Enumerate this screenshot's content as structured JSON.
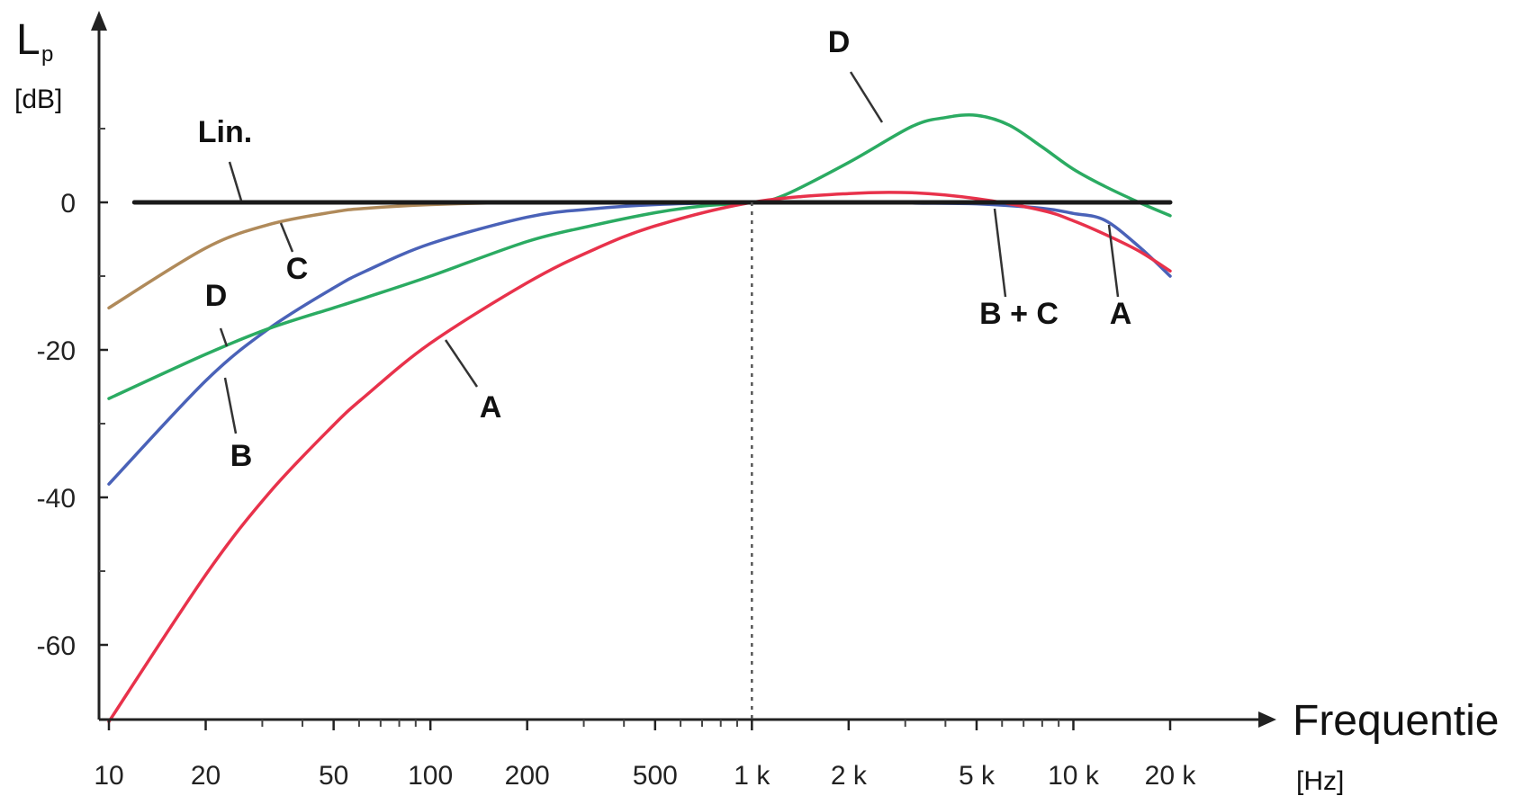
{
  "chart_data": {
    "type": "line",
    "title": "",
    "ylabel_main": "L",
    "ylabel_sub": "p",
    "ylabel_unit": "[dB]",
    "xlabel": "Frequentie",
    "xlabel_unit": "[Hz]",
    "x_scale": "log",
    "xlim": [
      10,
      20000
    ],
    "ylim": [
      -70,
      20
    ],
    "x_ticks": [
      10,
      20,
      50,
      100,
      200,
      500,
      1000,
      2000,
      5000,
      10000,
      20000
    ],
    "x_tick_labels": [
      "10",
      "20",
      "50",
      "100",
      "200",
      "500",
      "1 k",
      "2 k",
      "5 k",
      "10 k",
      "20 k"
    ],
    "y_ticks": [
      0,
      -20,
      -40,
      -60
    ],
    "y_tick_labels": [
      "0",
      "-20",
      "-40",
      "-60"
    ],
    "reference_line_x": 1000,
    "series": [
      {
        "name": "Lin.",
        "color": "#1a1a1a",
        "x": [
          12,
          20000
        ],
        "y": [
          0,
          0
        ]
      },
      {
        "name": "C",
        "color": "#b08a5a",
        "x": [
          10,
          20,
          31.5,
          50,
          63,
          100,
          200,
          500,
          1000
        ],
        "y": [
          -14.3,
          -6.2,
          -3.0,
          -1.3,
          -0.8,
          -0.3,
          0,
          0,
          0
        ]
      },
      {
        "name": "B",
        "color": "#4a62b8",
        "x": [
          10,
          20,
          31.5,
          50,
          63,
          100,
          200,
          315,
          500,
          1000,
          2000,
          3150,
          5000,
          8000,
          10000,
          12500,
          16000,
          20000
        ],
        "y": [
          -38.2,
          -24.2,
          -17.1,
          -11.6,
          -9.3,
          -5.6,
          -2.0,
          -0.9,
          -0.3,
          0,
          0,
          -0.1,
          -0.2,
          -0.8,
          -1.5,
          -2.4,
          -6.0,
          -10.0
        ]
      },
      {
        "name": "A",
        "color": "#e8324b",
        "x": [
          10,
          20,
          31.5,
          50,
          63,
          100,
          200,
          315,
          500,
          1000,
          2000,
          3150,
          5000,
          8000,
          10000,
          12500,
          16000,
          20000
        ],
        "y": [
          -70.4,
          -50.5,
          -39.4,
          -30.2,
          -26.2,
          -19.1,
          -10.9,
          -6.6,
          -3.2,
          0,
          1.2,
          1.3,
          0.5,
          -1.1,
          -2.5,
          -4.3,
          -6.6,
          -9.3
        ]
      },
      {
        "name": "D",
        "color": "#2bab62",
        "x": [
          10,
          20,
          31.5,
          50,
          63,
          100,
          200,
          315,
          500,
          700,
          1000,
          1250,
          2000,
          3150,
          4000,
          5000,
          6300,
          8000,
          10000,
          12500,
          16000,
          20000
        ],
        "y": [
          -26.6,
          -20.6,
          -17.1,
          -14.3,
          -12.9,
          -10.0,
          -5.3,
          -3.2,
          -1.4,
          -0.5,
          0,
          0.9,
          5.4,
          10.3,
          11.5,
          11.8,
          10.5,
          7.5,
          4.5,
          2.2,
          0,
          -1.8
        ]
      }
    ],
    "annotations": [
      {
        "text": "Lin.",
        "series": "Lin."
      },
      {
        "text": "C",
        "series": "C"
      },
      {
        "text": "D",
        "series": "D"
      },
      {
        "text": "B",
        "series": "B"
      },
      {
        "text": "A",
        "series": "A"
      },
      {
        "text": "D",
        "series": "D"
      },
      {
        "text": "B + C",
        "series": "B"
      },
      {
        "text": "A",
        "series": "A"
      }
    ]
  }
}
